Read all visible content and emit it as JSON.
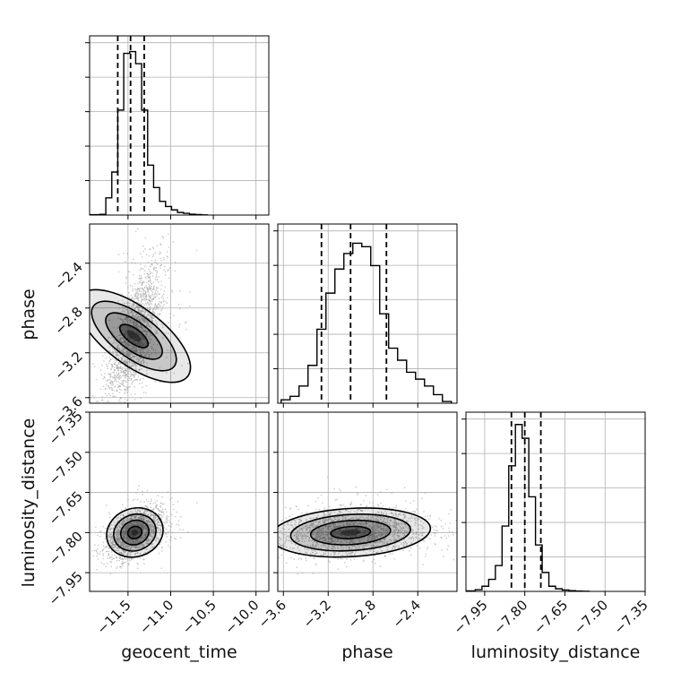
{
  "chart_data": {
    "type": "corner",
    "parameters": [
      "geocent_time",
      "phase",
      "luminosity_distance"
    ],
    "axis_labels": {
      "x": [
        "geocent_time",
        "phase",
        "luminosity_distance"
      ],
      "y": [
        "",
        "phase",
        "luminosity_distance"
      ]
    },
    "ranges": {
      "geocent_time": [
        -11.95,
        -9.85
      ],
      "phase": [
        -3.65,
        -2.05
      ],
      "luminosity_distance": [
        -8.02,
        -7.35
      ]
    },
    "ticks": {
      "geocent_time": [
        -11.5,
        -11.0,
        -10.5,
        -10.0
      ],
      "phase": [
        -3.6,
        -3.2,
        -2.8,
        -2.4
      ],
      "luminosity_distance": [
        -7.95,
        -7.8,
        -7.65,
        -7.5,
        -7.35
      ]
    },
    "tick_labels": {
      "geocent_time": [
        "−11.5",
        "−11.0",
        "−10.5",
        "−10.0"
      ],
      "phase": [
        "−3.6",
        "−3.2",
        "−2.8",
        "−2.4"
      ],
      "luminosity_distance": [
        "−7.95",
        "−7.80",
        "−7.65",
        "−7.50",
        "−7.35"
      ]
    },
    "quantiles": {
      "geocent_time": [
        -11.62,
        -11.47,
        -11.31
      ],
      "phase": [
        -3.26,
        -3.0,
        -2.68
      ],
      "luminosity_distance": [
        -7.85,
        -7.8,
        -7.74
      ]
    },
    "histograms": {
      "geocent_time": {
        "bin_edges": [
          -11.95,
          -11.83,
          -11.76,
          -11.69,
          -11.62,
          -11.55,
          -11.48,
          -11.41,
          -11.34,
          -11.27,
          -11.2,
          -11.13,
          -11.06,
          -10.99,
          -10.92,
          -10.85,
          -10.78,
          -10.71,
          -10.64,
          -10.57
        ],
        "counts": [
          0.002,
          0.004,
          0.1,
          0.25,
          0.61,
          0.94,
          0.95,
          0.88,
          0.61,
          0.29,
          0.16,
          0.08,
          0.05,
          0.03,
          0.015,
          0.01,
          0.005,
          0.003,
          0.001
        ]
      },
      "phase": {
        "bin_edges": [
          -3.62,
          -3.54,
          -3.46,
          -3.38,
          -3.3,
          -3.22,
          -3.14,
          -3.06,
          -2.98,
          -2.9,
          -2.82,
          -2.74,
          -2.66,
          -2.58,
          -2.5,
          -2.42,
          -2.34,
          -2.26,
          -2.18,
          -2.1
        ],
        "counts": [
          0.02,
          0.04,
          0.1,
          0.22,
          0.43,
          0.64,
          0.78,
          0.87,
          0.93,
          0.91,
          0.8,
          0.52,
          0.32,
          0.25,
          0.18,
          0.14,
          0.1,
          0.05,
          0.01
        ]
      },
      "luminosity_distance": {
        "bin_edges": [
          -8.02,
          -7.985,
          -7.96,
          -7.935,
          -7.91,
          -7.885,
          -7.86,
          -7.835,
          -7.81,
          -7.785,
          -7.76,
          -7.735,
          -7.71,
          -7.685,
          -7.66,
          -7.635,
          -7.61,
          -7.585,
          -7.56
        ],
        "counts": [
          0.003,
          0.01,
          0.03,
          0.07,
          0.15,
          0.38,
          0.73,
          0.97,
          0.89,
          0.55,
          0.27,
          0.11,
          0.03,
          0.015,
          0.008,
          0.004,
          0.002,
          0.001
        ]
      }
    },
    "joint": {
      "phase_vs_geocent_time": {
        "center": [
          -11.43,
          -3.05
        ],
        "spread": [
          0.16,
          0.3
        ],
        "correlation": 0.68,
        "contour_levels_sigma": [
          0.5,
          1.0,
          1.5,
          2.0
        ]
      },
      "luminosity_distance_vs_geocent_time": {
        "center": [
          -11.42,
          -7.8
        ],
        "spread": [
          0.16,
          0.045
        ],
        "correlation": 0.45,
        "contour_levels_sigma": [
          0.5,
          1.0,
          1.5,
          2.0
        ]
      },
      "luminosity_distance_vs_phase": {
        "center": [
          -3.0,
          -7.8
        ],
        "spread": [
          0.34,
          0.045
        ],
        "correlation": 0.2,
        "contour_levels_sigma": [
          0.5,
          1.0,
          1.5,
          2.0
        ]
      }
    },
    "grid": true,
    "colors": {
      "line": "#000000",
      "grid": "#b0b0b0",
      "points": "#9a9a9a",
      "density": "#111111"
    }
  }
}
